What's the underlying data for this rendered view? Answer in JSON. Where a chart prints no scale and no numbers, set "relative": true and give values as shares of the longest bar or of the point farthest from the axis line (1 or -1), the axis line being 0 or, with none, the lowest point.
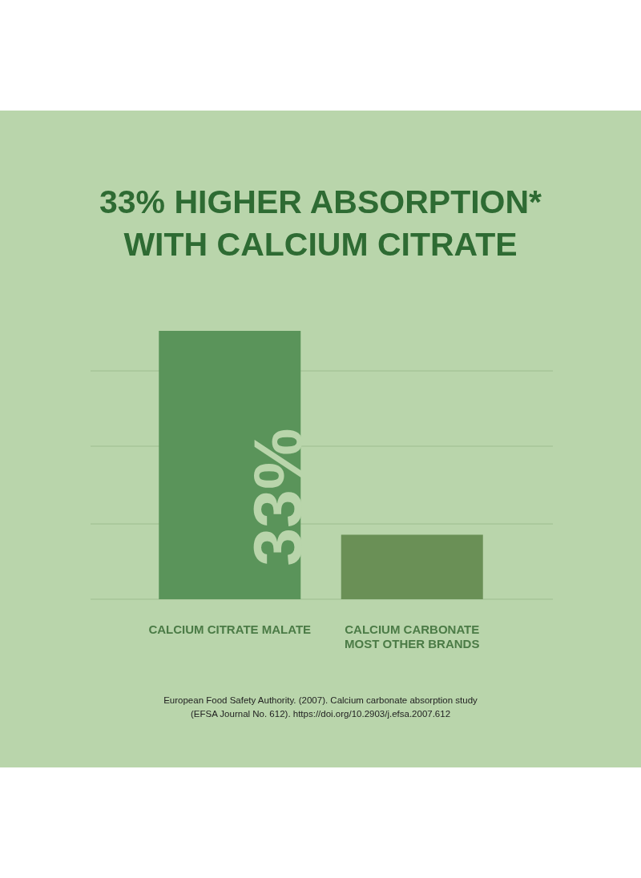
{
  "chart_data": {
    "type": "bar",
    "title": "33% HIGHER ABSORPTION*\nWITH CALCIUM CITRATE",
    "categories": [
      "CALCIUM CITRATE MALATE",
      "CALCIUM CARBONATE\nMOST OTHER BRANDS"
    ],
    "values": [
      1,
      0.24
    ],
    "colors": [
      "#5a945a",
      "#6a9056"
    ],
    "relative": true,
    "ref_lines": [
      {
        "axis": "y",
        "value": 0.28,
        "color": "#abc99d"
      },
      {
        "axis": "y",
        "value": 0.57,
        "color": "#abc99d"
      },
      {
        "axis": "y",
        "value": 0.85,
        "color": "#abc99d"
      }
    ],
    "annotations": [
      "33%",
      "European Food Safety Authority. (2007). Calcium carbonate absorption study\n(EFSA Journal No. 612). https://doi.org/10.2903/j.efsa.2007.612"
    ]
  }
}
